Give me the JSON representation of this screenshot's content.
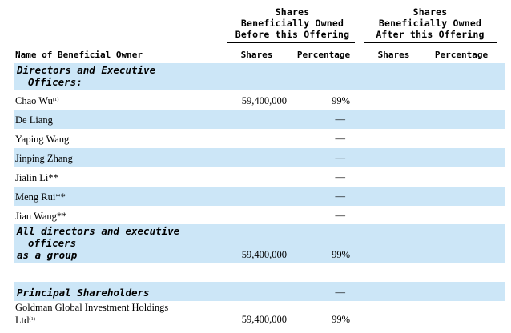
{
  "header": {
    "before_group": [
      "Shares",
      "Beneficially Owned",
      "Before this Offering"
    ],
    "after_group": [
      "Shares",
      "Beneficially Owned",
      "After this Offering"
    ],
    "name_col": "Name of Beneficial Owner",
    "shares_col": "Shares",
    "pct_col": "Percentage",
    "shares_col_after": "Shares",
    "pct_col_after": "Percentage"
  },
  "section_directors": [
    "Directors and Executive",
    "Officers:"
  ],
  "rows": [
    {
      "name": "Chao Wu",
      "note": "(1)",
      "shares": "59,400,000",
      "pct": "99%"
    },
    {
      "name": "De Liang",
      "note": "",
      "shares": "",
      "pct": "—"
    },
    {
      "name": "Yaping Wang",
      "note": "",
      "shares": "",
      "pct": "—"
    },
    {
      "name": "Jinping Zhang",
      "note": "",
      "shares": "",
      "pct": "—"
    },
    {
      "name": "Jialin Li**",
      "note": "",
      "shares": "",
      "pct": "—"
    },
    {
      "name": "Meng Rui**",
      "note": "",
      "shares": "",
      "pct": "—"
    },
    {
      "name": "Jian Wang**",
      "note": "",
      "shares": "",
      "pct": "—"
    }
  ],
  "group_row": {
    "label": [
      "All directors and executive",
      "officers",
      "as a group"
    ],
    "shares": "59,400,000",
    "pct": "99%"
  },
  "section_principal": {
    "label": "Principal Shareholders",
    "pct": "—"
  },
  "goldman_row": {
    "name": [
      "Goldman Global Investment Holdings",
      "Ltd"
    ],
    "note": "(1)",
    "shares": "59,400,000",
    "pct": "99%"
  }
}
